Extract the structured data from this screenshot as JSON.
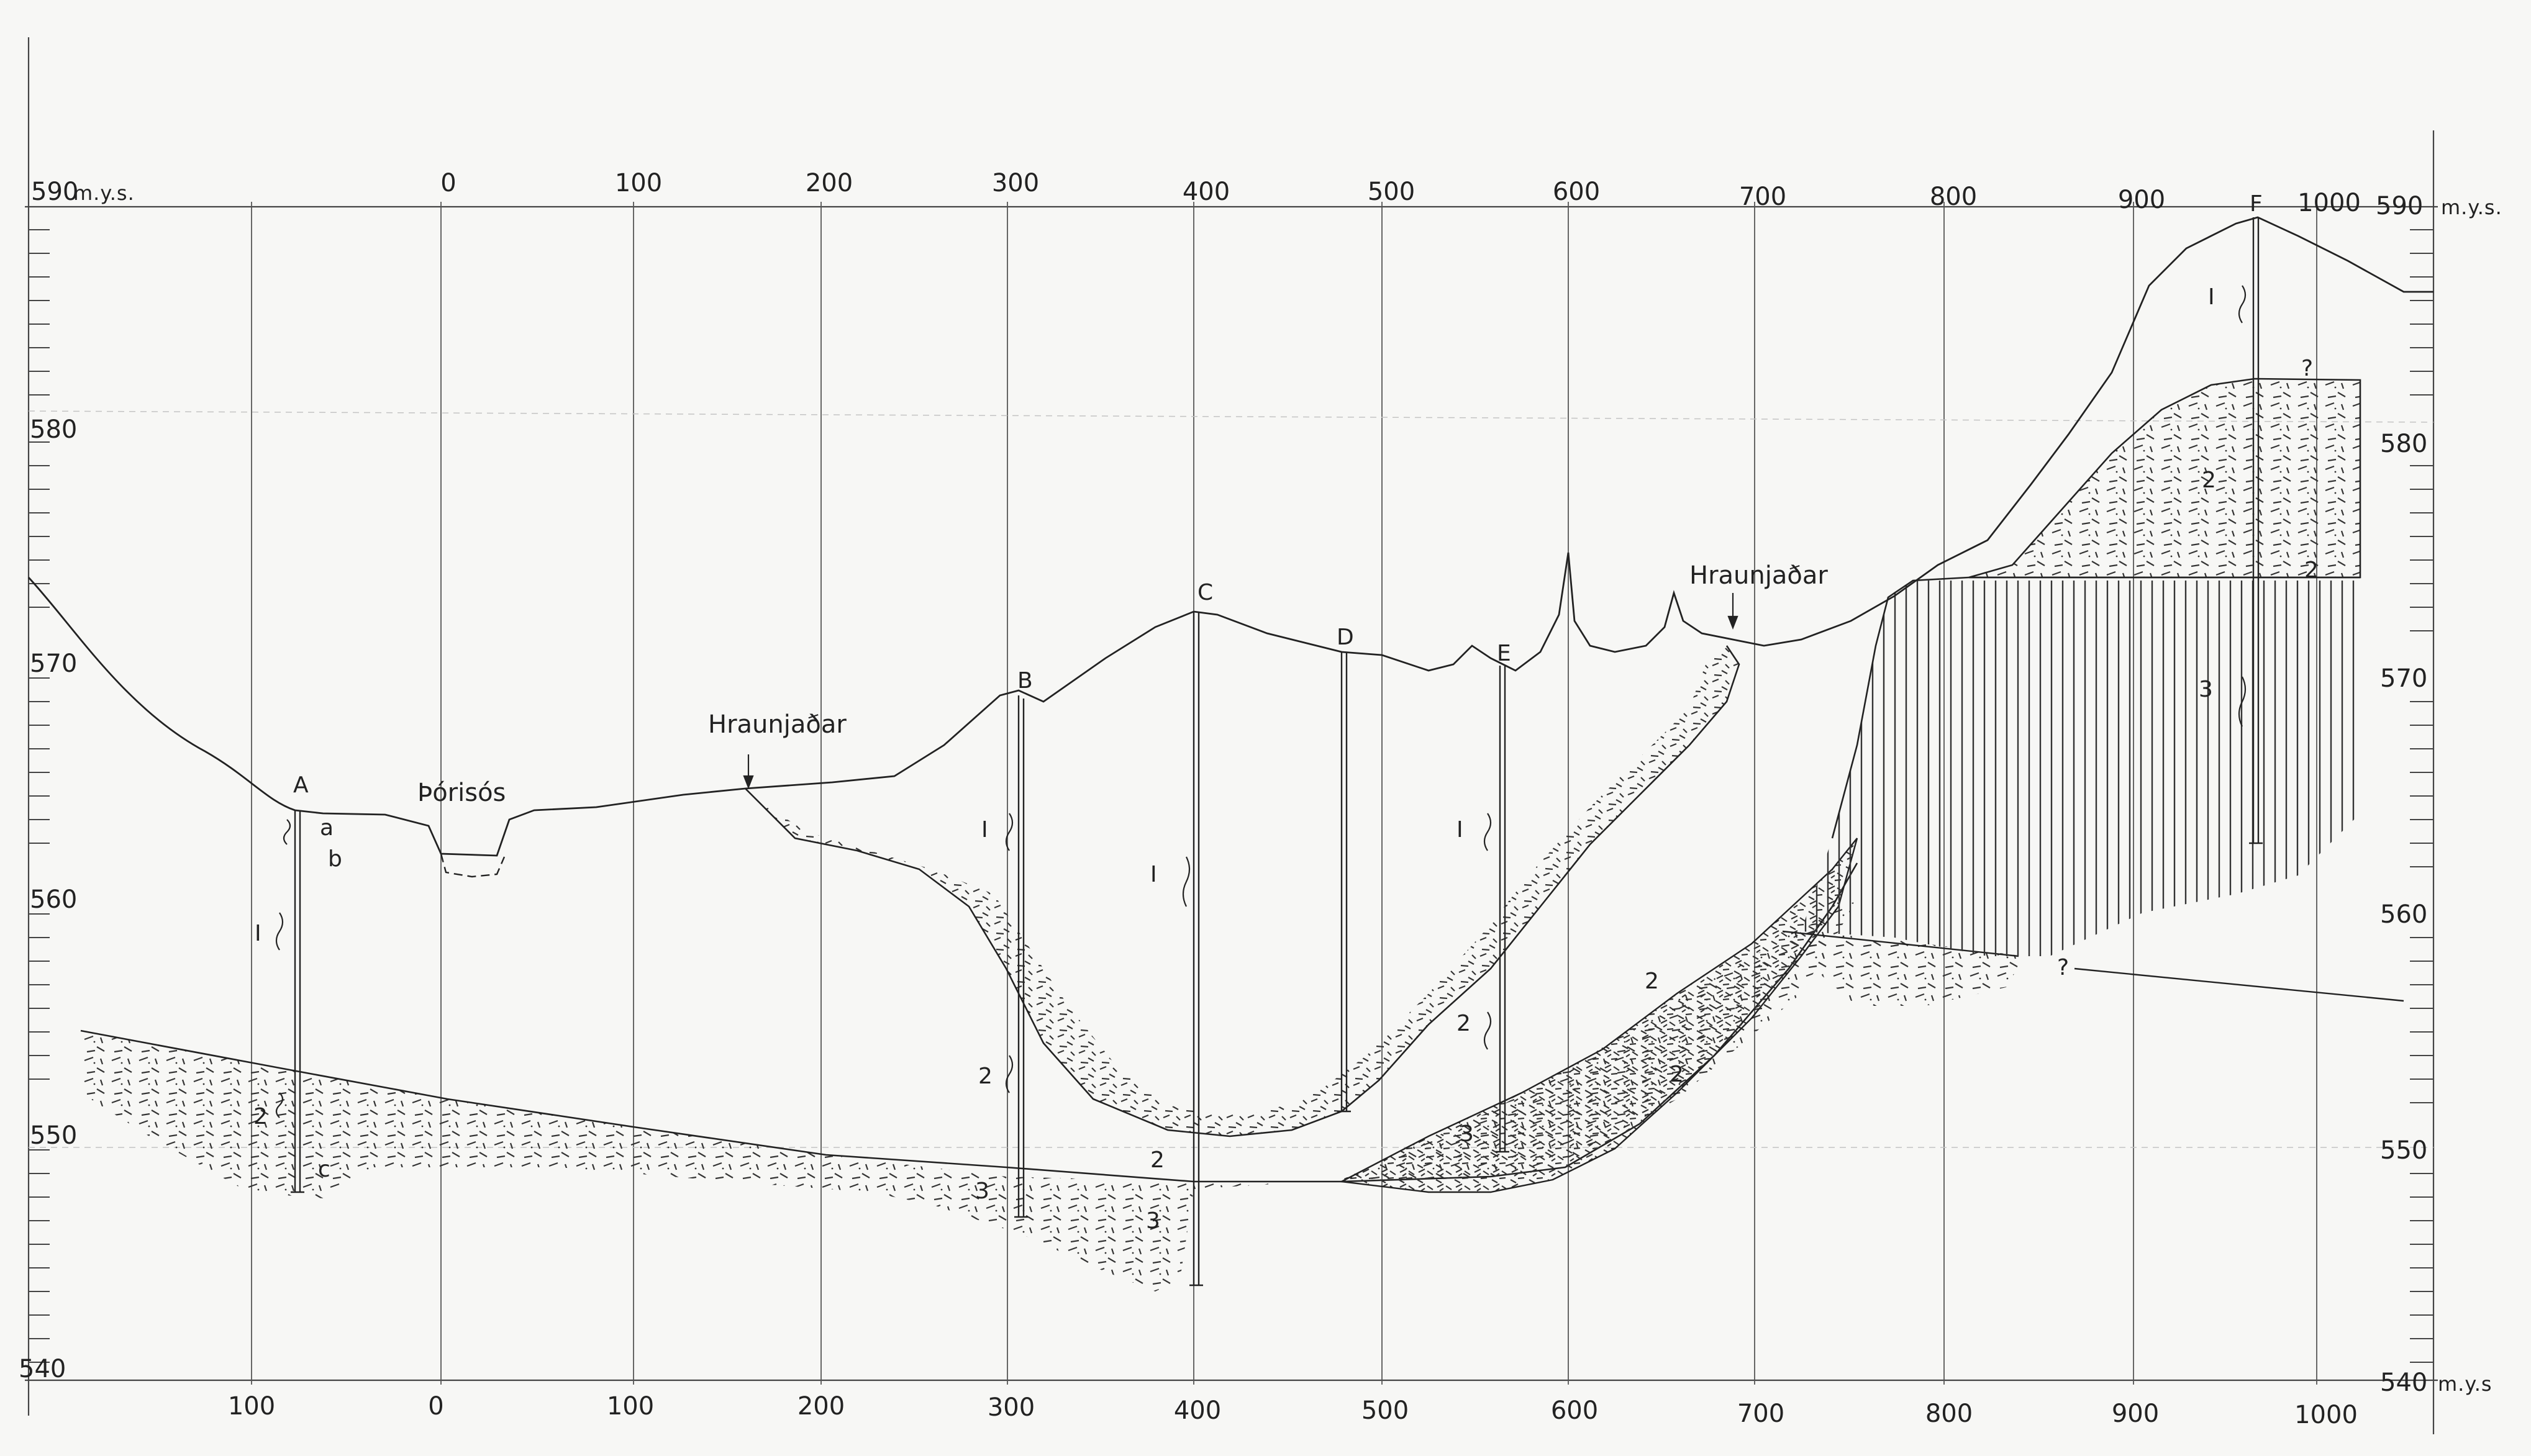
{
  "top_axis": {
    "unit": "m.y.s.",
    "left_elev": "590",
    "right_elev": "590",
    "ticks": [
      "0",
      "100",
      "200",
      "300",
      "400",
      "500",
      "600",
      "700",
      "800",
      "900",
      "1000"
    ]
  },
  "bottom_axis": {
    "unit": "m.y.s",
    "left_elev": "540",
    "right_elev": "540",
    "ticks": [
      "100",
      "0",
      "100",
      "200",
      "300",
      "400",
      "500",
      "600",
      "700",
      "800",
      "900",
      "1000"
    ]
  },
  "left_elevations": [
    "580",
    "570",
    "560",
    "550"
  ],
  "right_elevations": [
    "580",
    "570",
    "560",
    "550"
  ],
  "places": {
    "thorisos": "Þórisós",
    "hraunjadar_1": "Hraunjaðar",
    "hraunjadar_2": "Hraunjaðar"
  },
  "boreholes": {
    "a": "A",
    "b": "B",
    "c": "C",
    "d": "D",
    "e": "E",
    "f": "F"
  },
  "borehole_a_subdivisions": {
    "a": "a",
    "b": "b",
    "c": "c"
  },
  "layer_marks": {
    "one": "I",
    "two": "2",
    "three": "3",
    "unknown": "?"
  },
  "colors": {
    "ink": "#222222",
    "paper": "#f7f7f5",
    "faint": "#b8b8b8"
  }
}
